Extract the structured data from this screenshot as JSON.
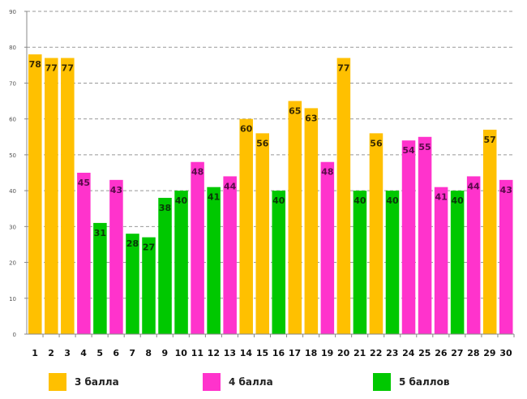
{
  "chart_data": {
    "type": "bar",
    "title": "",
    "xlabel": "",
    "ylabel": "",
    "ylim": [
      0,
      90
    ],
    "yticks": [
      0,
      10,
      20,
      30,
      40,
      50,
      60,
      70,
      80,
      90
    ],
    "grid": true,
    "categories": [
      "1",
      "2",
      "3",
      "4",
      "5",
      "6",
      "7",
      "8",
      "9",
      "10",
      "11",
      "12",
      "13",
      "14",
      "15",
      "16",
      "17",
      "18",
      "19",
      "20",
      "21",
      "22",
      "23",
      "24",
      "25",
      "26",
      "27",
      "28",
      "29",
      "30"
    ],
    "values": [
      78,
      77,
      77,
      45,
      31,
      43,
      28,
      27,
      38,
      40,
      48,
      41,
      44,
      60,
      56,
      40,
      65,
      63,
      48,
      77,
      40,
      56,
      40,
      54,
      55,
      41,
      40,
      44,
      57,
      43
    ],
    "groups": [
      3,
      3,
      3,
      4,
      5,
      4,
      5,
      5,
      5,
      5,
      4,
      5,
      4,
      3,
      3,
      5,
      3,
      3,
      4,
      3,
      5,
      3,
      5,
      4,
      4,
      4,
      5,
      4,
      3,
      4
    ],
    "legend_position": "bottom",
    "legend": [
      {
        "group": 3,
        "label": "3 балла",
        "color": "#FFC000"
      },
      {
        "group": 4,
        "label": "4 балла",
        "color": "#FF33CC"
      },
      {
        "group": 5,
        "label": "5 баллов",
        "color": "#00C800"
      }
    ]
  }
}
